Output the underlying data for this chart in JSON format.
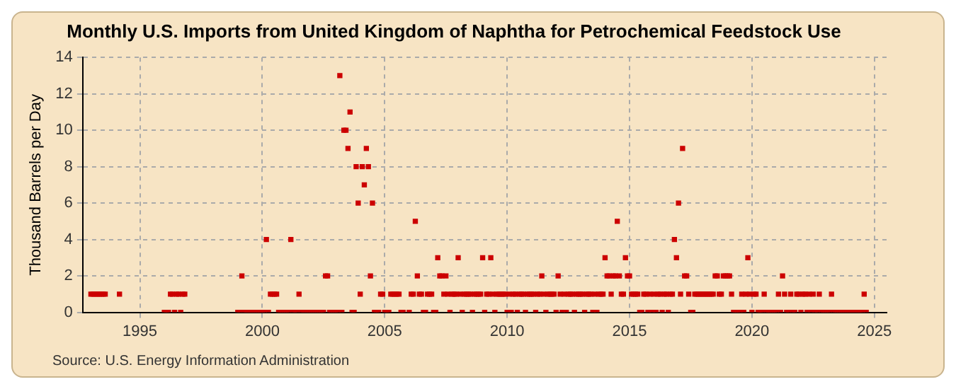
{
  "chart_data": {
    "type": "scatter",
    "title": "Monthly U.S. Imports from United Kingdom of Naphtha for Petrochemical Feedstock Use",
    "ylabel": "Thousand Barrels per Day",
    "annotations": [
      "Source: U.S. Energy Information Administration"
    ],
    "xlim": [
      "1992-09",
      "2025-07"
    ],
    "xticks": [
      "1995",
      "2000",
      "2005",
      "2010",
      "2015",
      "2020",
      "2025"
    ],
    "ylim": [
      0,
      14
    ],
    "yticks": [
      0,
      2,
      4,
      6,
      8,
      10,
      12,
      14
    ],
    "grid": true,
    "legend": false,
    "marker": "square",
    "series": [
      {
        "color": "#cc0000",
        "x": [
          "1993-01",
          "1993-02",
          "1993-03",
          "1993-04",
          "1993-05",
          "1993-06",
          "1993-07",
          "1993-08",
          "1994-03",
          "1996-01",
          "1996-02",
          "1996-03",
          "1996-04",
          "1996-05",
          "1996-06",
          "1996-07",
          "1996-08",
          "1996-09",
          "1996-10",
          "1996-11",
          "1999-01",
          "1999-02",
          "1999-03",
          "1999-04",
          "1999-05",
          "1999-06",
          "1999-07",
          "1999-08",
          "1999-09",
          "1999-10",
          "1999-11",
          "1999-12",
          "2000-01",
          "2000-02",
          "2000-03",
          "2000-04",
          "2000-05",
          "2000-06",
          "2000-07",
          "2000-08",
          "2000-09",
          "2000-10",
          "2000-11",
          "2000-12",
          "2001-01",
          "2001-02",
          "2001-03",
          "2001-04",
          "2001-05",
          "2001-06",
          "2001-07",
          "2001-08",
          "2001-09",
          "2001-10",
          "2001-11",
          "2001-12",
          "2002-01",
          "2002-02",
          "2002-03",
          "2002-04",
          "2002-05",
          "2002-06",
          "2002-07",
          "2002-08",
          "2002-09",
          "2002-10",
          "2002-11",
          "2002-12",
          "2003-01",
          "2003-02",
          "2003-03",
          "2003-04",
          "2003-05",
          "2003-06",
          "2003-07",
          "2003-08",
          "2003-09",
          "2003-10",
          "2003-11",
          "2003-12",
          "2004-01",
          "2004-02",
          "2004-03",
          "2004-04",
          "2004-05",
          "2004-06",
          "2004-07",
          "2004-08",
          "2004-09",
          "2004-10",
          "2004-11",
          "2004-12",
          "2005-01",
          "2005-02",
          "2005-03",
          "2005-04",
          "2005-05",
          "2005-06",
          "2005-07",
          "2005-08",
          "2005-09",
          "2005-10",
          "2006-01",
          "2006-02",
          "2006-03",
          "2006-04",
          "2006-05",
          "2006-06",
          "2006-07",
          "2006-08",
          "2006-09",
          "2006-10",
          "2006-11",
          "2006-12",
          "2007-01",
          "2007-02",
          "2007-03",
          "2007-04",
          "2007-05",
          "2007-06",
          "2007-07",
          "2007-08",
          "2007-09",
          "2007-10",
          "2007-11",
          "2007-12",
          "2008-01",
          "2008-02",
          "2008-03",
          "2008-04",
          "2008-05",
          "2008-06",
          "2008-07",
          "2008-08",
          "2008-09",
          "2008-10",
          "2008-11",
          "2008-12",
          "2009-01",
          "2009-02",
          "2009-03",
          "2009-04",
          "2009-05",
          "2009-06",
          "2009-07",
          "2009-08",
          "2009-09",
          "2009-10",
          "2009-11",
          "2009-12",
          "2010-01",
          "2010-02",
          "2010-03",
          "2010-04",
          "2010-05",
          "2010-06",
          "2010-07",
          "2010-08",
          "2010-09",
          "2010-10",
          "2010-11",
          "2010-12",
          "2011-01",
          "2011-02",
          "2011-03",
          "2011-04",
          "2011-05",
          "2011-06",
          "2011-07",
          "2011-08",
          "2011-09",
          "2011-10",
          "2011-11",
          "2011-12",
          "2012-01",
          "2012-02",
          "2012-03",
          "2012-04",
          "2012-05",
          "2012-06",
          "2012-07",
          "2012-08",
          "2012-09",
          "2012-10",
          "2012-11",
          "2012-12",
          "2013-01",
          "2013-02",
          "2013-03",
          "2013-04",
          "2013-05",
          "2013-06",
          "2013-07",
          "2013-08",
          "2013-09",
          "2013-10",
          "2013-11",
          "2013-12",
          "2014-01",
          "2014-02",
          "2014-03",
          "2014-04",
          "2014-05",
          "2014-06",
          "2014-07",
          "2014-08",
          "2014-09",
          "2014-10",
          "2014-11",
          "2014-12",
          "2015-01",
          "2015-02",
          "2015-03",
          "2015-04",
          "2015-05",
          "2015-06",
          "2015-07",
          "2015-08",
          "2015-09",
          "2015-10",
          "2015-11",
          "2015-12",
          "2016-01",
          "2016-02",
          "2016-03",
          "2016-04",
          "2016-05",
          "2016-06",
          "2016-07",
          "2016-08",
          "2016-09",
          "2016-10",
          "2016-11",
          "2016-12",
          "2017-01",
          "2017-02",
          "2017-03",
          "2017-04",
          "2017-05",
          "2017-06",
          "2017-07",
          "2017-08",
          "2017-09",
          "2017-10",
          "2017-11",
          "2017-12",
          "2018-01",
          "2018-02",
          "2018-03",
          "2018-04",
          "2018-05",
          "2018-06",
          "2018-07",
          "2018-08",
          "2018-09",
          "2018-10",
          "2018-11",
          "2018-12",
          "2019-01",
          "2019-02",
          "2019-03",
          "2019-04",
          "2019-05",
          "2019-06",
          "2019-07",
          "2019-08",
          "2019-09",
          "2019-10",
          "2019-11",
          "2019-12",
          "2020-01",
          "2020-02",
          "2020-03",
          "2020-04",
          "2020-05",
          "2020-06",
          "2020-07",
          "2020-08",
          "2020-09",
          "2020-10",
          "2020-11",
          "2020-12",
          "2021-01",
          "2021-02",
          "2021-03",
          "2021-04",
          "2021-05",
          "2021-06",
          "2021-07",
          "2021-08",
          "2021-09",
          "2021-10",
          "2021-11",
          "2021-12",
          "2022-01",
          "2022-02",
          "2022-03",
          "2022-04",
          "2022-05",
          "2022-06",
          "2022-07",
          "2022-08",
          "2022-09",
          "2022-10",
          "2022-11",
          "2022-12",
          "2023-01",
          "2023-02",
          "2023-03",
          "2023-04",
          "2023-05",
          "2023-06",
          "2023-07",
          "2023-08",
          "2023-09",
          "2023-10",
          "2023-11",
          "2023-12",
          "2024-01",
          "2024-02",
          "2024-03",
          "2024-04",
          "2024-05",
          "2024-06",
          "2024-07",
          "2024-08",
          "2024-09"
        ],
        "values": [
          1,
          1,
          1,
          1,
          1,
          1,
          1,
          1,
          1,
          0,
          0,
          0,
          1,
          1,
          0,
          1,
          1,
          0,
          1,
          1,
          0,
          0,
          2,
          0,
          0,
          0,
          0,
          0,
          0,
          0,
          0,
          0,
          0,
          0,
          4,
          0,
          1,
          1,
          1,
          1,
          0,
          0,
          0,
          0,
          0,
          0,
          4,
          0,
          0,
          0,
          1,
          0,
          0,
          0,
          0,
          0,
          0,
          0,
          0,
          0,
          0,
          0,
          0,
          2,
          2,
          0,
          0,
          0,
          0,
          0,
          13,
          0,
          10,
          10,
          9,
          11,
          0,
          0,
          8,
          6,
          1,
          8,
          7,
          9,
          8,
          2,
          6,
          0,
          0,
          0,
          1,
          1,
          0,
          0,
          0,
          1,
          1,
          1,
          1,
          1,
          0,
          0,
          0,
          1,
          1,
          5,
          2,
          1,
          1,
          0,
          0,
          1,
          1,
          1,
          0,
          0,
          3,
          2,
          2,
          1,
          2,
          1,
          0,
          1,
          1,
          1,
          3,
          1,
          0,
          1,
          1,
          1,
          1,
          0,
          1,
          1,
          1,
          1,
          3,
          0,
          1,
          1,
          3,
          1,
          0,
          1,
          1,
          1,
          1,
          1,
          0,
          1,
          0,
          1,
          1,
          0,
          1,
          1,
          1,
          0,
          1,
          1,
          1,
          1,
          0,
          1,
          1,
          2,
          1,
          0,
          1,
          1,
          1,
          1,
          0,
          2,
          1,
          0,
          1,
          0,
          1,
          1,
          1,
          0,
          1,
          1,
          1,
          1,
          0,
          1,
          1,
          1,
          0,
          1,
          0,
          1,
          1,
          1,
          3,
          2,
          2,
          1,
          2,
          2,
          5,
          2,
          1,
          1,
          3,
          2,
          2,
          1,
          1,
          1,
          1,
          0,
          0,
          1,
          1,
          0,
          1,
          0,
          1,
          0,
          1,
          1,
          0,
          1,
          1,
          0,
          1,
          1,
          4,
          3,
          6,
          1,
          9,
          2,
          2,
          1,
          0,
          0,
          1,
          1,
          1,
          1,
          1,
          1,
          1,
          1,
          1,
          1,
          2,
          2,
          1,
          1,
          2,
          2,
          2,
          2,
          1,
          0,
          0,
          0,
          0,
          1,
          0,
          1,
          3,
          1,
          0,
          1,
          1,
          0,
          0,
          0,
          1,
          0,
          0,
          0,
          0,
          0,
          0,
          1,
          0,
          2,
          1,
          0,
          0,
          1,
          0,
          0,
          1,
          1,
          0,
          1,
          1,
          0,
          1,
          0,
          1,
          0,
          0,
          1,
          0,
          0,
          0,
          0,
          0,
          1,
          0,
          0,
          0,
          0,
          0,
          0,
          0,
          0,
          0,
          0,
          0,
          0,
          0,
          0,
          0,
          1,
          0
        ]
      }
    ]
  }
}
